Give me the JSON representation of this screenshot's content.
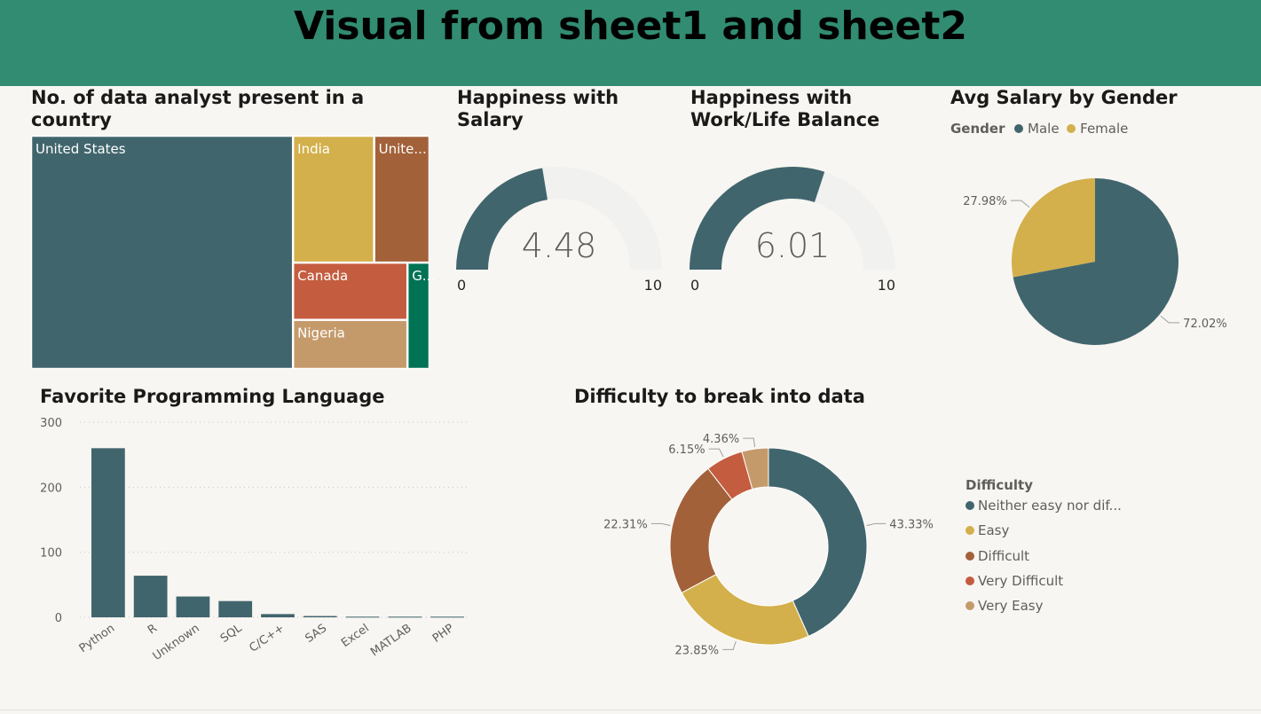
{
  "page": {
    "title": "Visual from sheet1 and sheet2"
  },
  "chart_data": [
    {
      "type": "treemap",
      "title": "No. of data analyst present in a country",
      "items": [
        {
          "label": "United States",
          "value": 261,
          "color": "#41656d"
        },
        {
          "label": "India",
          "value": 44,
          "color": "#d3b04b"
        },
        {
          "label": "Unite...",
          "value": 30,
          "color": "#a3613a"
        },
        {
          "label": "Canada",
          "value": 28,
          "color": "#c45c3f"
        },
        {
          "label": "Nigeria",
          "value": 24,
          "color": "#c59a6b"
        },
        {
          "label": "G...",
          "value": 10,
          "color": "#007354"
        }
      ]
    },
    {
      "type": "gauge",
      "title": "Happiness with Salary",
      "value": 4.48,
      "min": 0,
      "max": 10,
      "value_label": "4.48",
      "min_label": "0",
      "max_label": "10",
      "fill_color": "#41656d",
      "track_color": "#f1f1f0"
    },
    {
      "type": "gauge",
      "title": "Happiness with Work/Life Balance",
      "value": 6.01,
      "min": 0,
      "max": 10,
      "value_label": "6.01",
      "min_label": "0",
      "max_label": "10",
      "fill_color": "#41656d",
      "track_color": "#f1f1f0"
    },
    {
      "type": "pie",
      "title": "Avg Salary by Gender",
      "legend_title": "Gender",
      "legend_position": "top-left",
      "slices": [
        {
          "label": "Male",
          "value": 72.02,
          "display": "72.02%",
          "color": "#41656d"
        },
        {
          "label": "Female",
          "value": 27.98,
          "display": "27.98%",
          "color": "#d3b04b"
        }
      ]
    },
    {
      "type": "bar",
      "title": "Favorite Programming Language",
      "categories": [
        "Python",
        "R",
        "Unknown",
        "SQL",
        "C/C++",
        "SAS",
        "Excel",
        "MATLAB",
        "PHP"
      ],
      "values": [
        260,
        64,
        32,
        25,
        5,
        2,
        1,
        1,
        1
      ],
      "ylim": [
        0,
        300
      ],
      "yticks": [
        "0",
        "100",
        "200",
        "300"
      ],
      "grid": true,
      "color": "#41656d"
    },
    {
      "type": "donut",
      "title": "Difficulty to break into data",
      "legend_title": "Difficulty",
      "legend_position": "right",
      "slices": [
        {
          "label": "Neither easy nor dif...",
          "value": 43.33,
          "display": "43.33%",
          "color": "#41656d"
        },
        {
          "label": "Easy",
          "value": 23.85,
          "display": "23.85%",
          "color": "#d3b04b"
        },
        {
          "label": "Difficult",
          "value": 22.31,
          "display": "22.31%",
          "color": "#a3613a"
        },
        {
          "label": "Very Difficult",
          "value": 6.15,
          "display": "6.15%",
          "color": "#c45c3f"
        },
        {
          "label": "Very Easy",
          "value": 4.36,
          "display": "4.36%",
          "color": "#c59a6b"
        }
      ]
    }
  ]
}
